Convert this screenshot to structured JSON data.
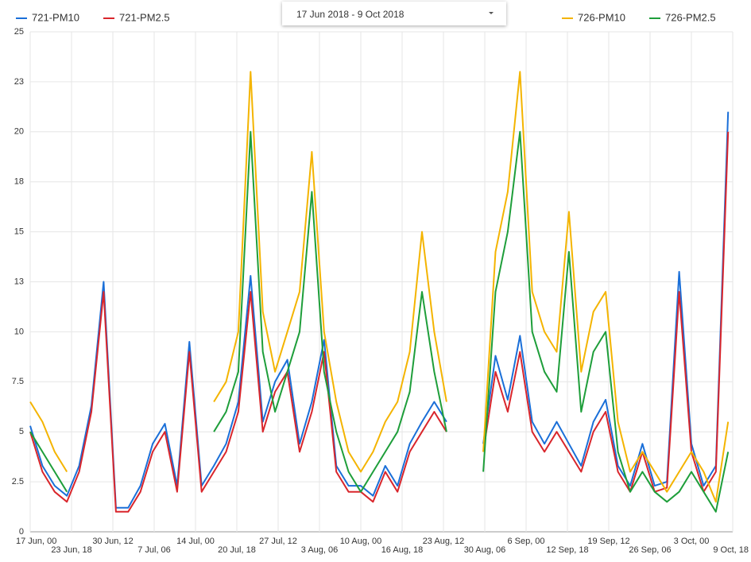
{
  "date_picker": {
    "label": "17 Jun 2018 - 9 Oct 2018"
  },
  "chart_data": {
    "type": "line",
    "x": [
      "2018-06-17T00:00",
      "2018-06-19T00:00",
      "2018-06-21T00:00",
      "2018-06-23T00:00",
      "2018-06-25T00:00",
      "2018-06-27T00:00",
      "2018-06-29T00:00",
      "2018-07-01T00:00",
      "2018-07-03T00:00",
      "2018-07-05T00:00",
      "2018-07-07T00:00",
      "2018-07-09T00:00",
      "2018-07-11T00:00",
      "2018-07-13T00:00",
      "2018-07-15T00:00",
      "2018-07-17T00:00",
      "2018-07-19T00:00",
      "2018-07-21T00:00",
      "2018-07-23T00:00",
      "2018-07-25T00:00",
      "2018-07-27T00:00",
      "2018-07-29T00:00",
      "2018-07-31T00:00",
      "2018-08-02T00:00",
      "2018-08-04T00:00",
      "2018-08-06T00:00",
      "2018-08-08T00:00",
      "2018-08-10T00:00",
      "2018-08-12T00:00",
      "2018-08-14T00:00",
      "2018-08-16T00:00",
      "2018-08-18T00:00",
      "2018-08-20T00:00",
      "2018-08-22T00:00",
      "2018-08-24T00:00",
      "2018-08-26T00:00",
      "2018-08-28T00:00",
      "2018-08-30T00:00",
      "2018-09-01T00:00",
      "2018-09-03T00:00",
      "2018-09-05T00:00",
      "2018-09-07T00:00",
      "2018-09-09T00:00",
      "2018-09-11T00:00",
      "2018-09-13T00:00",
      "2018-09-15T00:00",
      "2018-09-17T00:00",
      "2018-09-19T00:00",
      "2018-09-21T00:00",
      "2018-09-23T00:00",
      "2018-09-25T00:00",
      "2018-09-27T00:00",
      "2018-09-29T00:00",
      "2018-10-01T00:00",
      "2018-10-03T00:00",
      "2018-10-05T00:00",
      "2018-10-07T00:00",
      "2018-10-09T00:00"
    ],
    "series": [
      {
        "name": "721-PM10",
        "color": "#1a6fd8",
        "values": [
          5.3,
          3.3,
          2.3,
          1.8,
          3.3,
          6.3,
          12.5,
          1.2,
          1.2,
          2.3,
          4.4,
          5.4,
          2.3,
          9.5,
          2.3,
          3.3,
          4.4,
          6.5,
          12.8,
          5.5,
          7.5,
          8.6,
          4.4,
          6.5,
          9.6,
          3.3,
          2.3,
          2.3,
          1.8,
          3.3,
          2.3,
          4.4,
          5.5,
          6.5,
          5.5,
          null,
          null,
          4.4,
          8.8,
          6.6,
          9.8,
          5.5,
          4.4,
          5.5,
          4.4,
          3.3,
          5.5,
          6.6,
          3.3,
          2.3,
          4.4,
          2.3,
          2.5,
          13,
          4.4,
          2.3,
          3.3,
          21
        ]
      },
      {
        "name": "721-PM2.5",
        "color": "#d9262c",
        "values": [
          5,
          3,
          2,
          1.5,
          3,
          6,
          12,
          1,
          1,
          2,
          4,
          5,
          2,
          9,
          2,
          3,
          4,
          6,
          12,
          5,
          7,
          8,
          4,
          6,
          9,
          3,
          2,
          2,
          1.5,
          3,
          2,
          4,
          5,
          6,
          5,
          null,
          null,
          4,
          8,
          6,
          9,
          5,
          4,
          5,
          4,
          3,
          5,
          6,
          3,
          2,
          4,
          2,
          2.2,
          12,
          4,
          2,
          3,
          20
        ]
      },
      {
        "name": "726-PM10",
        "color": "#f4b400",
        "values": [
          6.5,
          5.5,
          4,
          3,
          null,
          null,
          null,
          null,
          null,
          null,
          null,
          null,
          null,
          null,
          null,
          6.5,
          7.5,
          10,
          23,
          11,
          8,
          10,
          12,
          19,
          10,
          6.5,
          4,
          3,
          4,
          5.5,
          6.5,
          9,
          15,
          10,
          6.5,
          null,
          null,
          4,
          14,
          17,
          23,
          12,
          10,
          9,
          16,
          8,
          11,
          12,
          5.5,
          3,
          4,
          3,
          2,
          3,
          4,
          3,
          1.5,
          5.5
        ]
      },
      {
        "name": "726-PM2.5",
        "color": "#1e9e3a",
        "values": [
          5,
          4,
          3,
          2,
          null,
          null,
          null,
          null,
          null,
          null,
          null,
          null,
          null,
          null,
          null,
          5,
          6,
          8,
          20,
          9,
          6,
          8,
          10,
          17,
          8,
          5,
          3,
          2,
          3,
          4,
          5,
          7,
          12,
          8,
          5,
          null,
          null,
          3,
          12,
          15,
          20,
          10,
          8,
          7,
          14,
          6,
          9,
          10,
          4,
          2,
          3,
          2,
          1.5,
          2,
          3,
          2,
          1,
          4
        ]
      }
    ],
    "xlim": [
      "2018-06-17T00:00",
      "2018-10-09T18:00"
    ],
    "xticks": [
      {
        "value": "2018-06-17T00:00",
        "label": "17 Jun, 00"
      },
      {
        "value": "2018-06-23T18:00",
        "label": "23 Jun, 18"
      },
      {
        "value": "2018-06-30T12:00",
        "label": "30 Jun, 12"
      },
      {
        "value": "2018-07-07T06:00",
        "label": "7 Jul, 06"
      },
      {
        "value": "2018-07-14T00:00",
        "label": "14 Jul, 00"
      },
      {
        "value": "2018-07-20T18:00",
        "label": "20 Jul, 18"
      },
      {
        "value": "2018-07-27T12:00",
        "label": "27 Jul, 12"
      },
      {
        "value": "2018-08-03T06:00",
        "label": "3 Aug, 06"
      },
      {
        "value": "2018-08-10T00:00",
        "label": "10 Aug, 00"
      },
      {
        "value": "2018-08-16T18:00",
        "label": "16 Aug, 18"
      },
      {
        "value": "2018-08-23T12:00",
        "label": "23 Aug, 12"
      },
      {
        "value": "2018-08-30T06:00",
        "label": "30 Aug, 06"
      },
      {
        "value": "2018-09-06T00:00",
        "label": "6 Sep, 00"
      },
      {
        "value": "2018-09-12T18:00",
        "label": "12 Sep, 18"
      },
      {
        "value": "2018-09-19T12:00",
        "label": "19 Sep, 12"
      },
      {
        "value": "2018-09-26T06:00",
        "label": "26 Sep, 06"
      },
      {
        "value": "2018-10-03T00:00",
        "label": "3 Oct, 00"
      },
      {
        "value": "2018-10-09T18:00",
        "label": "9 Oct, 18"
      }
    ],
    "ylim": [
      0,
      25
    ],
    "yticks": [
      0,
      2.5,
      5,
      7.5,
      10,
      {
        "value": 12.5,
        "label": "13"
      },
      15,
      {
        "value": 17.5,
        "label": "18"
      },
      20,
      {
        "value": 22.5,
        "label": "23"
      },
      25
    ],
    "grid": true
  }
}
